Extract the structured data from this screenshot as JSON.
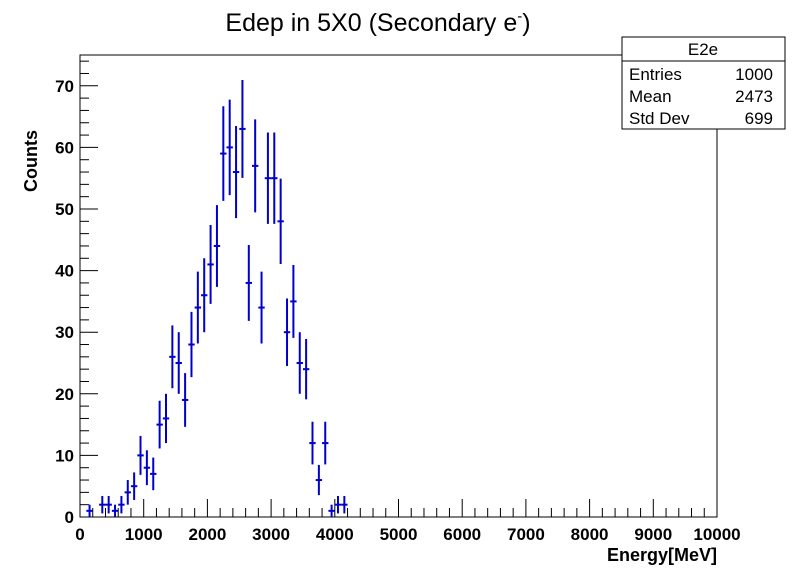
{
  "chart_data": {
    "type": "scatter",
    "title": "Edep in 5X0 (Secondary e",
    "title_superscript": "-",
    "xlabel": "Energy[MeV]",
    "ylabel": "Counts",
    "xlim": [
      0,
      10000
    ],
    "ylim": [
      0,
      75
    ],
    "x_ticks": [
      0,
      1000,
      2000,
      3000,
      4000,
      5000,
      6000,
      7000,
      8000,
      9000,
      10000
    ],
    "y_ticks": [
      0,
      10,
      20,
      30,
      40,
      50,
      60,
      70
    ],
    "bin_width": 100,
    "grid": false,
    "marker_color": "#0000cc",
    "stats_box": {
      "name": "E2e",
      "rows": [
        {
          "label": "Entries",
          "value": "1000"
        },
        {
          "label": "Mean",
          "value": "2473"
        },
        {
          "label": "Std Dev",
          "value": "699"
        }
      ]
    },
    "points": [
      {
        "x": 150,
        "y": 1
      },
      {
        "x": 350,
        "y": 2
      },
      {
        "x": 450,
        "y": 2
      },
      {
        "x": 550,
        "y": 1
      },
      {
        "x": 650,
        "y": 2
      },
      {
        "x": 750,
        "y": 4
      },
      {
        "x": 850,
        "y": 5
      },
      {
        "x": 950,
        "y": 10
      },
      {
        "x": 1050,
        "y": 8
      },
      {
        "x": 1150,
        "y": 7
      },
      {
        "x": 1250,
        "y": 15
      },
      {
        "x": 1350,
        "y": 16
      },
      {
        "x": 1450,
        "y": 26
      },
      {
        "x": 1550,
        "y": 25
      },
      {
        "x": 1650,
        "y": 19
      },
      {
        "x": 1750,
        "y": 28
      },
      {
        "x": 1850,
        "y": 34
      },
      {
        "x": 1950,
        "y": 36
      },
      {
        "x": 2050,
        "y": 41
      },
      {
        "x": 2150,
        "y": 44
      },
      {
        "x": 2250,
        "y": 59
      },
      {
        "x": 2350,
        "y": 60
      },
      {
        "x": 2450,
        "y": 56
      },
      {
        "x": 2550,
        "y": 63
      },
      {
        "x": 2650,
        "y": 38
      },
      {
        "x": 2750,
        "y": 57
      },
      {
        "x": 2850,
        "y": 34
      },
      {
        "x": 2950,
        "y": 55
      },
      {
        "x": 3050,
        "y": 55
      },
      {
        "x": 3150,
        "y": 48
      },
      {
        "x": 3250,
        "y": 30
      },
      {
        "x": 3350,
        "y": 35
      },
      {
        "x": 3450,
        "y": 25
      },
      {
        "x": 3550,
        "y": 24
      },
      {
        "x": 3650,
        "y": 12
      },
      {
        "x": 3750,
        "y": 6
      },
      {
        "x": 3850,
        "y": 12
      },
      {
        "x": 3950,
        "y": 1
      },
      {
        "x": 4050,
        "y": 2
      },
      {
        "x": 4150,
        "y": 2
      }
    ]
  }
}
